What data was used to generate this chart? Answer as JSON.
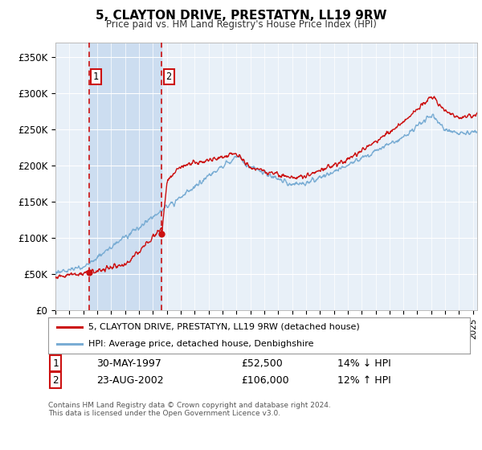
{
  "title": "5, CLAYTON DRIVE, PRESTATYN, LL19 9RW",
  "subtitle": "Price paid vs. HM Land Registry's House Price Index (HPI)",
  "ylabel_ticks": [
    "£0",
    "£50K",
    "£100K",
    "£150K",
    "£200K",
    "£250K",
    "£300K",
    "£350K"
  ],
  "ylim": [
    0,
    370000
  ],
  "xlim_start": 1995.0,
  "xlim_end": 2025.3,
  "sale1_x": 1997.41,
  "sale1_y": 52500,
  "sale2_x": 2002.64,
  "sale2_y": 106000,
  "sale1_date": "30-MAY-1997",
  "sale1_price": "£52,500",
  "sale1_hpi": "14% ↓ HPI",
  "sale2_date": "23-AUG-2002",
  "sale2_price": "£106,000",
  "sale2_hpi": "12% ↑ HPI",
  "hpi_color": "#7aadd4",
  "price_color": "#cc1111",
  "bg_color": "#e8f0f8",
  "vspan_color": "#ccddf0",
  "legend_line1": "5, CLAYTON DRIVE, PRESTATYN, LL19 9RW (detached house)",
  "legend_line2": "HPI: Average price, detached house, Denbighshire",
  "footer": "Contains HM Land Registry data © Crown copyright and database right 2024.\nThis data is licensed under the Open Government Licence v3.0."
}
